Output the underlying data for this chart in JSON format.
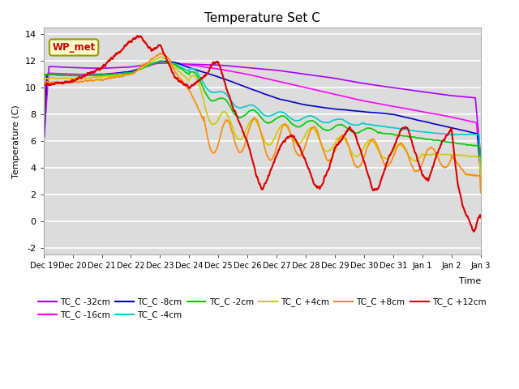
{
  "title": "Temperature Set C",
  "ylabel": "Temperature (C)",
  "xlabel": "Time",
  "ylim": [
    -2.5,
    14.5
  ],
  "bg_color": "#dcdcdc",
  "series": [
    {
      "label": "TC_C -32cm",
      "color": "#aa00ff"
    },
    {
      "label": "TC_C -16cm",
      "color": "#ff00ff"
    },
    {
      "label": "TC_C -8cm",
      "color": "#0000cc"
    },
    {
      "label": "TC_C -4cm",
      "color": "#00cccc"
    },
    {
      "label": "TC_C -2cm",
      "color": "#00cc00"
    },
    {
      "label": "TC_C +4cm",
      "color": "#cccc00"
    },
    {
      "label": "TC_C +8cm",
      "color": "#ff8800"
    },
    {
      "label": "TC_C +12cm",
      "color": "#dd0000"
    }
  ],
  "annotation": "WP_met",
  "tick_labels": [
    "Dec 19",
    "Dec 20",
    "Dec 21",
    "Dec 22",
    "Dec 23",
    "Dec 24",
    "Dec 25",
    "Dec 26",
    "Dec 27",
    "Dec 28",
    "Dec 29",
    "Dec 30",
    "Dec 31",
    "Jan 1",
    "Jan 2",
    "Jan 3"
  ],
  "yticks": [
    -2,
    0,
    2,
    4,
    6,
    8,
    10,
    12,
    14
  ]
}
